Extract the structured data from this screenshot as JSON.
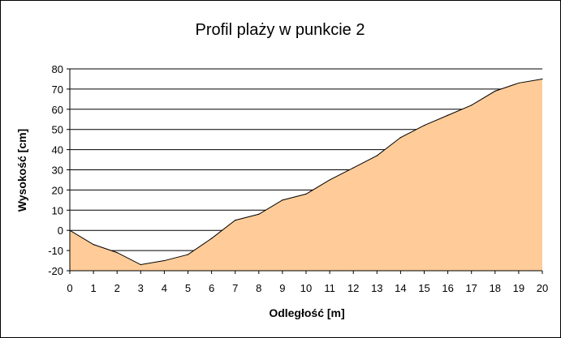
{
  "chart_data": {
    "type": "area",
    "title": "Profil plaży w punkcie 2",
    "xlabel": "Odległość [m]",
    "ylabel": "Wysokość [cm]",
    "x": [
      0,
      1,
      2,
      3,
      4,
      5,
      6,
      7,
      8,
      9,
      10,
      11,
      12,
      13,
      14,
      15,
      16,
      17,
      18,
      19,
      20
    ],
    "series": [
      {
        "values": [
          0,
          -7,
          -11,
          -17,
          -15,
          -12,
          -4,
          5,
          8,
          15,
          18,
          25,
          31,
          37,
          46,
          52,
          57,
          62,
          69,
          73,
          75
        ]
      }
    ],
    "xlim": [
      0,
      20
    ],
    "ylim": [
      -20,
      80
    ],
    "yticks": [
      -20,
      -10,
      0,
      10,
      20,
      30,
      40,
      50,
      60,
      70,
      80
    ],
    "xticks": [
      0,
      1,
      2,
      3,
      4,
      5,
      6,
      7,
      8,
      9,
      10,
      11,
      12,
      13,
      14,
      15,
      16,
      17,
      18,
      19,
      20
    ],
    "grid": "horizontal",
    "fill_color": "#FFCC99",
    "line_color": "#000000"
  }
}
